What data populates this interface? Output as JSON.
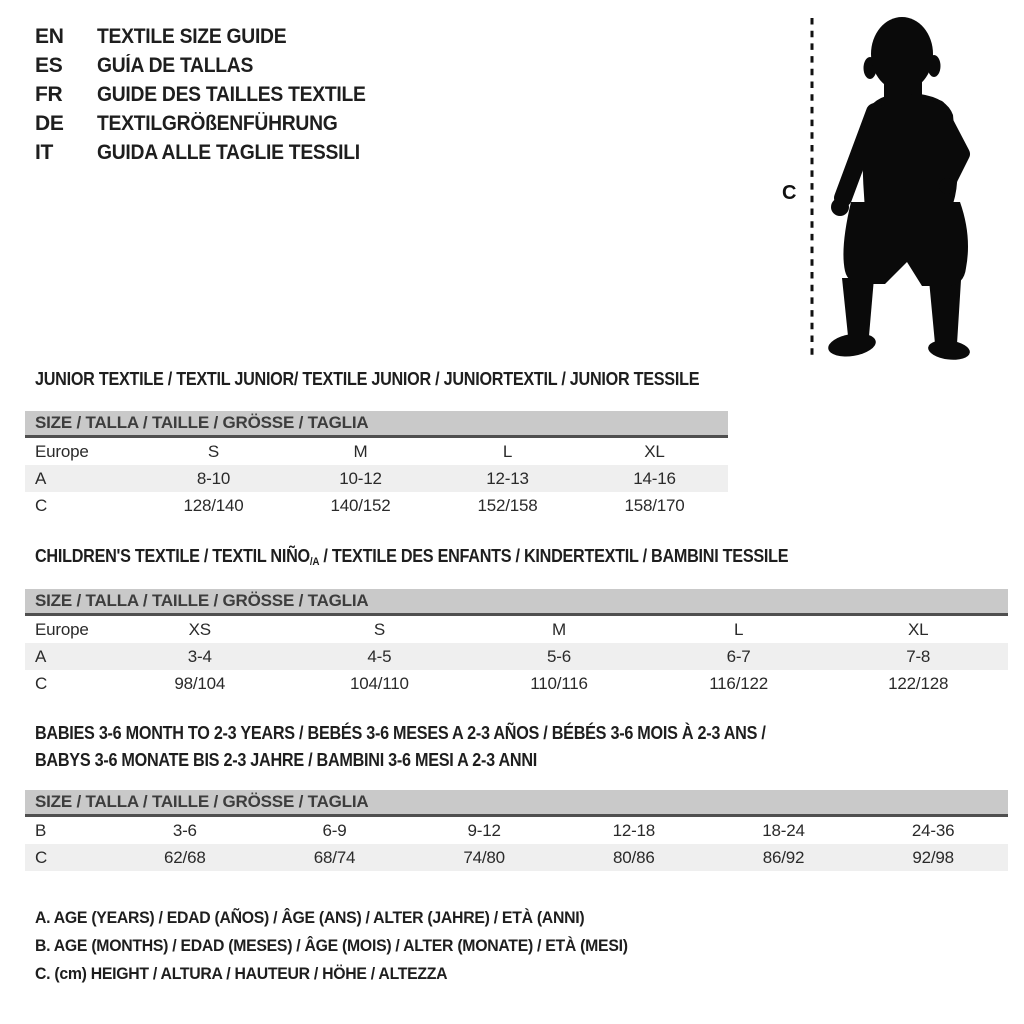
{
  "title_block": {
    "languages": [
      {
        "code": "EN",
        "label": "TEXTILE SIZE GUIDE"
      },
      {
        "code": "ES",
        "label": "GUÍA DE TALLAS"
      },
      {
        "code": "FR",
        "label": "GUIDE DES TAILLES TEXTILE"
      },
      {
        "code": "DE",
        "label": "TEXTILGRÖßENFÜHRUNG"
      },
      {
        "code": "IT",
        "label": "GUIDA ALLE TAGLIE TESSILI"
      }
    ]
  },
  "figure": {
    "icon": "toddler-silhouette",
    "height_marker": "C"
  },
  "sections": [
    {
      "heading": "JUNIOR TEXTILE / TEXTIL JUNIOR/ TEXTILE JUNIOR / JUNIORTEXTIL / JUNIOR TESSILE",
      "table": {
        "header": "SIZE / TALLA / TAILLE / GRÖSSE / TAGLIA",
        "rows": [
          {
            "label": "Europe",
            "values": [
              "S",
              "M",
              "L",
              "XL"
            ]
          },
          {
            "label": "A",
            "values": [
              "8-10",
              "10-12",
              "12-13",
              "14-16"
            ]
          },
          {
            "label": "C",
            "values": [
              "128/140",
              "140/152",
              "152/158",
              "158/170"
            ]
          }
        ]
      }
    },
    {
      "heading_pre": "CHILDREN'S TEXTILE / TEXTIL NIÑO",
      "heading_sub": "/A",
      "heading_post": " / TEXTILE DES ENFANTS / KINDERTEXTIL / BAMBINI TESSILE",
      "table": {
        "header": "SIZE / TALLA / TAILLE / GRÖSSE / TAGLIA",
        "rows": [
          {
            "label": "Europe",
            "values": [
              "XS",
              "S",
              "M",
              "L",
              "XL"
            ]
          },
          {
            "label": "A",
            "values": [
              "3-4",
              "4-5",
              "5-6",
              "6-7",
              "7-8"
            ]
          },
          {
            "label": "C",
            "values": [
              "98/104",
              "104/110",
              "110/116",
              "116/122",
              "122/128"
            ]
          }
        ]
      }
    },
    {
      "heading_line1": "BABIES 3-6 MONTH TO 2-3 YEARS / BEBÉS 3-6 MESES A 2-3 AÑOS / BÉBÉS 3-6 MOIS À 2-3 ANS /",
      "heading_line2": "BABYS 3-6 MONATE BIS 2-3 JAHRE / BAMBINI 3-6 MESI A 2-3 ANNI",
      "table": {
        "header": "SIZE / TALLA / TAILLE / GRÖSSE / TAGLIA",
        "rows": [
          {
            "label": "B",
            "values": [
              "3-6",
              "6-9",
              "9-12",
              "12-18",
              "18-24",
              "24-36"
            ]
          },
          {
            "label": "C",
            "values": [
              "62/68",
              "68/74",
              "74/80",
              "80/86",
              "86/92",
              "92/98"
            ]
          }
        ]
      }
    }
  ],
  "footnotes": [
    "A. AGE (YEARS) / EDAD (AÑOS) / ÂGE (ANS) / ALTER (JAHRE) / ETÀ (ANNI)",
    "B. AGE (MONTHS) / EDAD (MESES) / ÂGE (MOIS) / ALTER (MONATE) / ETÀ (MESI)",
    "C. (cm) HEIGHT / ALTURA / HAUTEUR / HÖHE / ALTEZZA"
  ],
  "colors": {
    "header_bar_bg": "#c9c9c9",
    "header_bar_border": "#4f4f4f",
    "alt_row_bg": "#efefef",
    "text": "#1e1e1e",
    "silhouette": "#0a0a0a"
  }
}
